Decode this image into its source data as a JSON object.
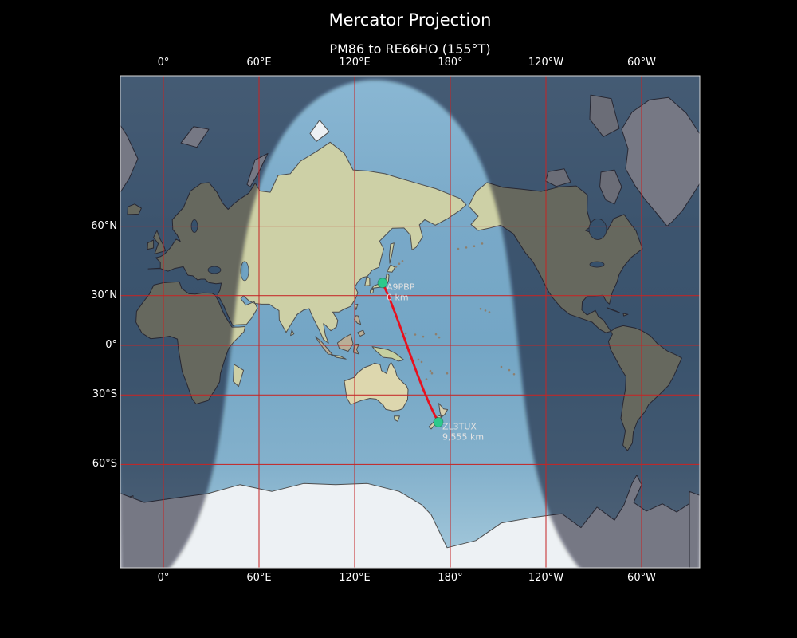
{
  "title": "Mercator Projection",
  "subtitle": "PM86 to RE66HO (155°T)",
  "axes": {
    "lon_ticks": [
      {
        "label": "0°",
        "lon": 0
      },
      {
        "label": "60°E",
        "lon": 60
      },
      {
        "label": "120°E",
        "lon": 120
      },
      {
        "label": "180°",
        "lon": 180
      },
      {
        "label": "120°W",
        "lon": 240
      },
      {
        "label": "60°W",
        "lon": 300
      }
    ],
    "lat_ticks": [
      {
        "label": "60°N",
        "lat": 60
      },
      {
        "label": "30°N",
        "lat": 30
      },
      {
        "label": "0°",
        "lat": 0
      },
      {
        "label": "30°S",
        "lat": -30
      },
      {
        "label": "60°S",
        "lat": -60
      }
    ]
  },
  "route": {
    "from_locator": "PM86",
    "to_locator": "RE66HO",
    "bearing": "155°T",
    "color": "#e8101e"
  },
  "stations": [
    {
      "callsign": "A9PBP",
      "distance_label": "0 km",
      "lat": 36.7,
      "lon": 137.5
    },
    {
      "callsign": "ZL3TUX",
      "distance_label": "9,555 km",
      "lat": -43.7,
      "lon": 172.5
    }
  ],
  "style_colors": {
    "background": "#000000",
    "text": "#ffffff",
    "grid_red": "#c52525",
    "marker_green": "#2dc98c",
    "day_ocean": "#74a6c5",
    "land": "#cdd0a6",
    "ice": "#edf1f4",
    "label_gray": "#e2e2e2",
    "night_rgba": "rgba(5,10,22,0.5)"
  }
}
